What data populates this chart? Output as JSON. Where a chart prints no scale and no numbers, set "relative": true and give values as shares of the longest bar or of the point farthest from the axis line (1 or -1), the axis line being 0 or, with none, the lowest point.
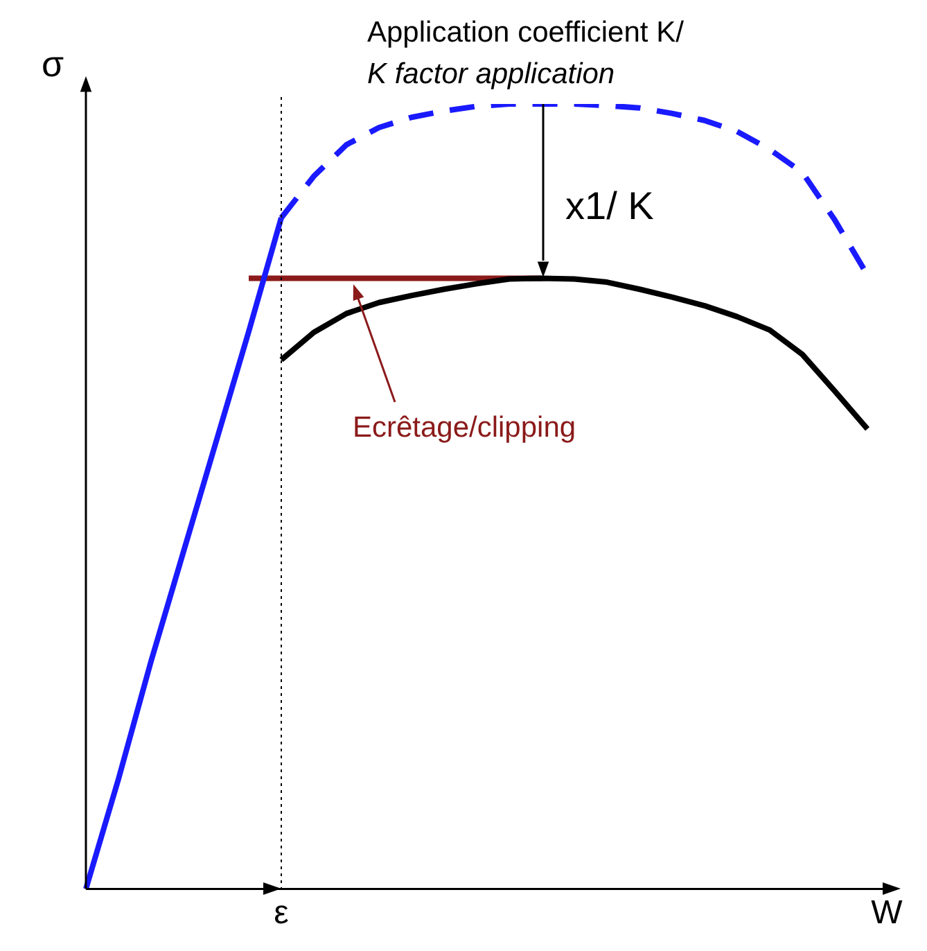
{
  "chart_data": {
    "type": "line",
    "relative": true,
    "xlabel": "W",
    "ylabel": "σ",
    "tick_labels": "x",
    "legend": false,
    "marker": "none",
    "categories": [
      null,
      null,
      null,
      null,
      null,
      null,
      null,
      null,
      null,
      null,
      null,
      null,
      null,
      null,
      null,
      null,
      null,
      null,
      null,
      null,
      null,
      null,
      null,
      null,
      null
    ],
    "series": [
      {
        "color": "#1a1aff",
        "line_style": "solid",
        "values": [
          0,
          0.14,
          0.29,
          0.43,
          0.57,
          0.71,
          0.855,
          null,
          null,
          null,
          null,
          null,
          null,
          null,
          null,
          null,
          null,
          null,
          null,
          null,
          null,
          null,
          null,
          null,
          null
        ]
      },
      {
        "color": "#1a1aff",
        "line_style": "dashed",
        "values": [
          null,
          null,
          null,
          null,
          null,
          null,
          0.855,
          0.908,
          0.948,
          0.97,
          0.983,
          0.991,
          0.997,
          1,
          1,
          1,
          0.998,
          0.995,
          0.988,
          0.979,
          0.965,
          0.942,
          0.913,
          0.852,
          0.782
        ]
      },
      {
        "color": "#000000",
        "line_style": "solid",
        "values": [
          null,
          null,
          null,
          null,
          null,
          null,
          0.674,
          0.709,
          0.733,
          0.747,
          0.756,
          0.764,
          0.771,
          0.777,
          0.778,
          0.777,
          0.773,
          0.764,
          0.754,
          0.743,
          0.729,
          0.712,
          0.681,
          0.634,
          0.586
        ]
      },
      {
        "color": "#8b1a1a",
        "line_style": "solid",
        "values": [
          null,
          null,
          null,
          null,
          null,
          0.778,
          0.778,
          0.778,
          0.778,
          0.778,
          0.778,
          0.778,
          0.778,
          0.778,
          0.778,
          null,
          null,
          null,
          null,
          null,
          null,
          null,
          null,
          null,
          null
        ]
      }
    ],
    "ref_lines": [
      {
        "axis": "x",
        "label": "ε",
        "color": "#000000",
        "line_style": "dotted"
      }
    ],
    "annotations": [
      "Application coefficient K/",
      "K factor application",
      "x1/ K",
      "Ecrêtage/clipping"
    ]
  }
}
